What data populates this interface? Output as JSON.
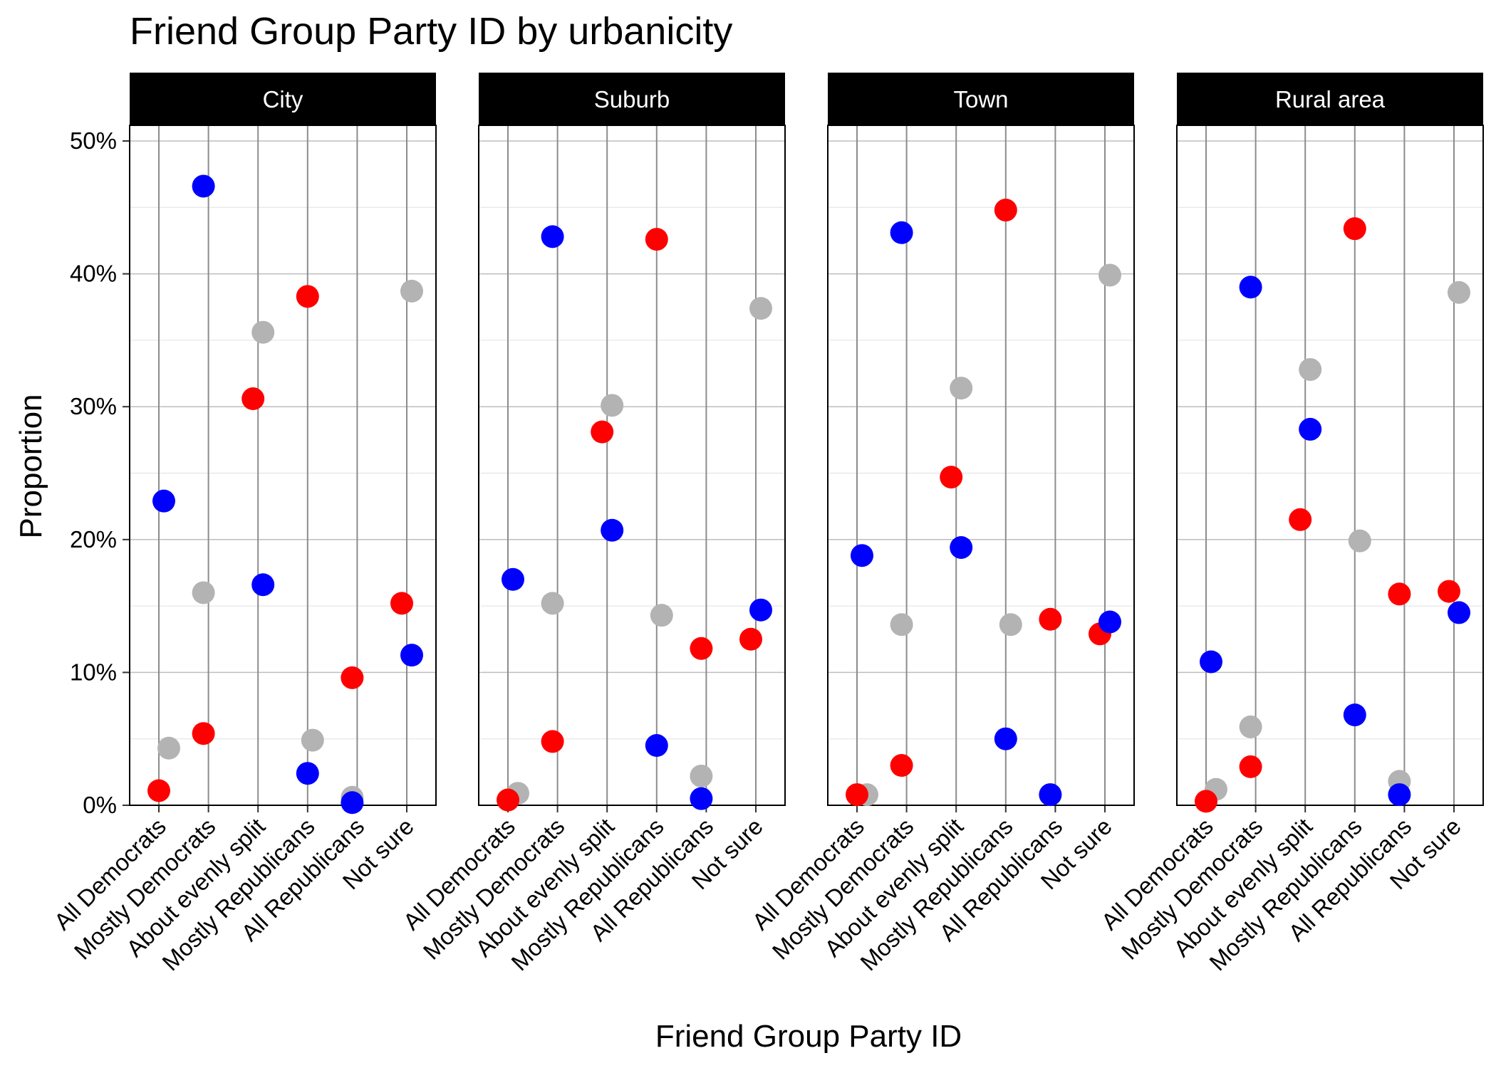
{
  "chart_data": {
    "type": "scatter",
    "title": "Friend Group Party ID by urbanicity",
    "xlabel": "Friend Group Party ID",
    "ylabel": "Proportion",
    "ylim": [
      0,
      0.55
    ],
    "y_ticks": [
      0,
      0.1,
      0.2,
      0.3,
      0.4,
      0.5
    ],
    "y_tick_labels": [
      "0%",
      "10%",
      "20%",
      "30%",
      "40%",
      "50%"
    ],
    "categories": [
      "All Democrats",
      "Mostly Democrats",
      "About evenly split",
      "Mostly Republicans",
      "All Republicans",
      "Not sure"
    ],
    "grid": true,
    "legend": "none",
    "series_colors": {
      "blue": "#0000ff",
      "red": "#ff0000",
      "gray": "#b3b3b3"
    },
    "panels": [
      {
        "label": "City",
        "series": [
          {
            "color": "blue",
            "values": [
              0.229,
              0.466,
              0.166,
              0.024,
              0.002,
              0.113
            ]
          },
          {
            "color": "red",
            "values": [
              0.011,
              0.054,
              0.306,
              0.383,
              0.096,
              0.152
            ]
          },
          {
            "color": "gray",
            "values": [
              0.043,
              0.16,
              0.356,
              0.049,
              0.006,
              0.387
            ]
          }
        ]
      },
      {
        "label": "Suburb",
        "series": [
          {
            "color": "blue",
            "values": [
              0.17,
              0.428,
              0.207,
              0.045,
              0.005,
              0.147
            ]
          },
          {
            "color": "red",
            "values": [
              0.004,
              0.048,
              0.281,
              0.426,
              0.118,
              0.125
            ]
          },
          {
            "color": "gray",
            "values": [
              0.009,
              0.152,
              0.301,
              0.143,
              0.022,
              0.374
            ]
          }
        ]
      },
      {
        "label": "Town",
        "series": [
          {
            "color": "blue",
            "values": [
              0.188,
              0.431,
              0.194,
              0.05,
              0.008,
              0.138
            ]
          },
          {
            "color": "red",
            "values": [
              0.008,
              0.03,
              0.247,
              0.448,
              0.14,
              0.129
            ]
          },
          {
            "color": "gray",
            "values": [
              0.008,
              0.136,
              0.314,
              0.136,
              0.008,
              0.399
            ]
          }
        ]
      },
      {
        "label": "Rural area",
        "series": [
          {
            "color": "blue",
            "values": [
              0.108,
              0.39,
              0.283,
              0.068,
              0.008,
              0.145
            ]
          },
          {
            "color": "red",
            "values": [
              0.003,
              0.029,
              0.215,
              0.434,
              0.159,
              0.161
            ]
          },
          {
            "color": "gray",
            "values": [
              0.012,
              0.059,
              0.328,
              0.199,
              0.018,
              0.386
            ]
          }
        ]
      }
    ]
  }
}
